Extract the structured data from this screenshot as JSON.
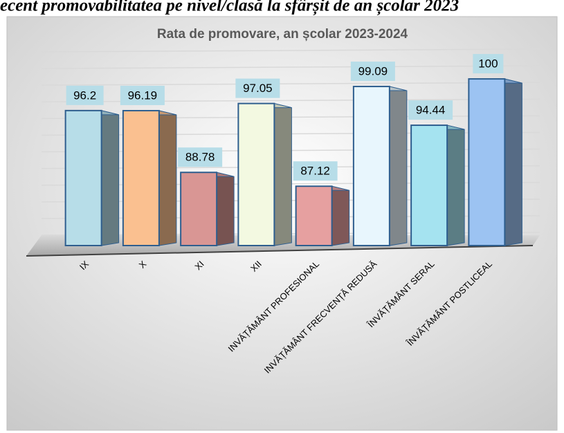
{
  "page_heading": "ecent promovabilitatea pe nivel/clasă la sfârșit de an școlar 2023",
  "chart_data": {
    "type": "bar3d",
    "title": "Rata de promovare, an școlar 2023-2024",
    "categories": [
      "IX",
      "X",
      "XI",
      "XII",
      "INVĂȚĂMÂNT PROFESIONAL",
      "INVĂȚĂMÂNT FRECVENȚĂ REDUSĂ",
      "ÎNVĂȚĂMÂNT SERAL",
      "ÎNVĂȚĂMÂNT POSTLICEAL"
    ],
    "values": [
      96.2,
      96.19,
      88.78,
      97.05,
      87.12,
      99.09,
      94.44,
      100
    ],
    "colors": [
      "#b7dde8",
      "#fac090",
      "#d99694",
      "#f3f9e1",
      "#e6a0a0",
      "#e8f6fd",
      "#a5e3f0",
      "#9cc3f2"
    ],
    "ylim": [
      80,
      102
    ],
    "yticks": [
      80,
      82,
      84,
      86,
      88,
      90,
      92,
      94,
      96,
      98,
      100,
      102
    ],
    "grid": true
  }
}
